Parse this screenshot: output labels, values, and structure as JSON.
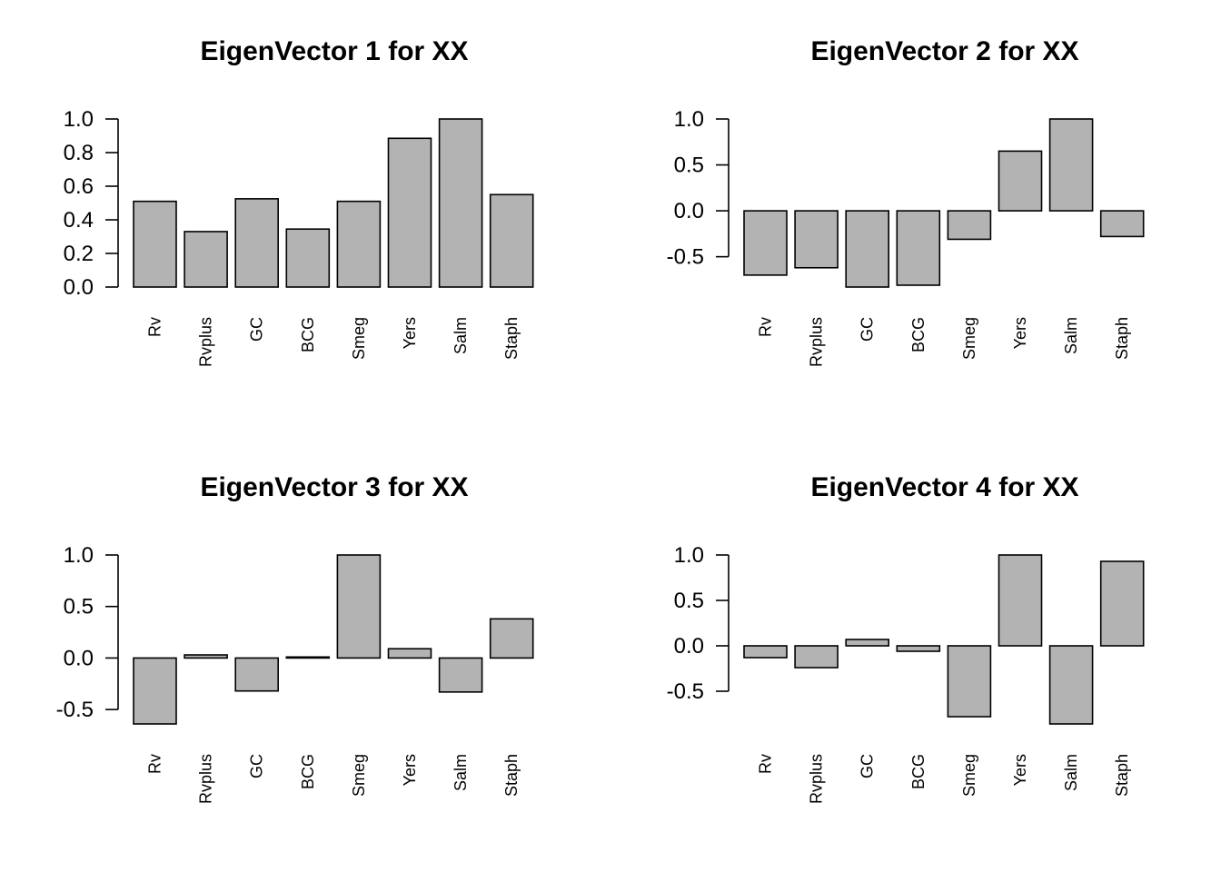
{
  "chart_data": [
    {
      "type": "bar",
      "title": "EigenVector 1 for XX",
      "categories": [
        "Rv",
        "Rvplus",
        "GC",
        "BCG",
        "Smeg",
        "Yers",
        "Salm",
        "Staph"
      ],
      "values": [
        0.51,
        0.33,
        0.525,
        0.345,
        0.51,
        0.885,
        1.0,
        0.55
      ],
      "yticks": [
        0.0,
        0.2,
        0.4,
        0.6,
        0.8,
        1.0
      ],
      "ytick_labels": [
        "0.0",
        "0.2",
        "0.4",
        "0.6",
        "0.8",
        "1.0"
      ],
      "ylim": [
        0.0,
        1.0
      ],
      "xlabel": "",
      "ylabel": "",
      "grid": false
    },
    {
      "type": "bar",
      "title": "EigenVector 2 for XX",
      "categories": [
        "Rv",
        "Rvplus",
        "GC",
        "BCG",
        "Smeg",
        "Yers",
        "Salm",
        "Staph"
      ],
      "values": [
        -0.7,
        -0.62,
        -0.83,
        -0.81,
        -0.31,
        0.65,
        1.0,
        -0.28
      ],
      "yticks": [
        -0.5,
        0.0,
        0.5,
        1.0
      ],
      "ytick_labels": [
        "-0.5",
        "0.0",
        "0.5",
        "1.0"
      ],
      "ylim": [
        -0.83,
        1.0
      ],
      "xlabel": "",
      "ylabel": "",
      "grid": false
    },
    {
      "type": "bar",
      "title": "EigenVector 3 for XX",
      "categories": [
        "Rv",
        "Rvplus",
        "GC",
        "BCG",
        "Smeg",
        "Yers",
        "Salm",
        "Staph"
      ],
      "values": [
        -0.64,
        0.03,
        -0.32,
        0.01,
        1.0,
        0.09,
        -0.33,
        0.38
      ],
      "yticks": [
        -0.5,
        0.0,
        0.5,
        1.0
      ],
      "ytick_labels": [
        "-0.5",
        "0.0",
        "0.5",
        "1.0"
      ],
      "ylim": [
        -0.64,
        1.0
      ],
      "xlabel": "",
      "ylabel": "",
      "grid": false
    },
    {
      "type": "bar",
      "title": "EigenVector 4 for XX",
      "categories": [
        "Rv",
        "Rvplus",
        "GC",
        "BCG",
        "Smeg",
        "Yers",
        "Salm",
        "Staph"
      ],
      "values": [
        -0.13,
        -0.24,
        0.07,
        -0.06,
        -0.78,
        1.0,
        -0.86,
        0.93
      ],
      "yticks": [
        -0.5,
        0.0,
        0.5,
        1.0
      ],
      "ytick_labels": [
        "-0.5",
        "0.0",
        "0.5",
        "1.0"
      ],
      "ylim": [
        -0.86,
        1.0
      ],
      "xlabel": "",
      "ylabel": "",
      "grid": false
    }
  ]
}
